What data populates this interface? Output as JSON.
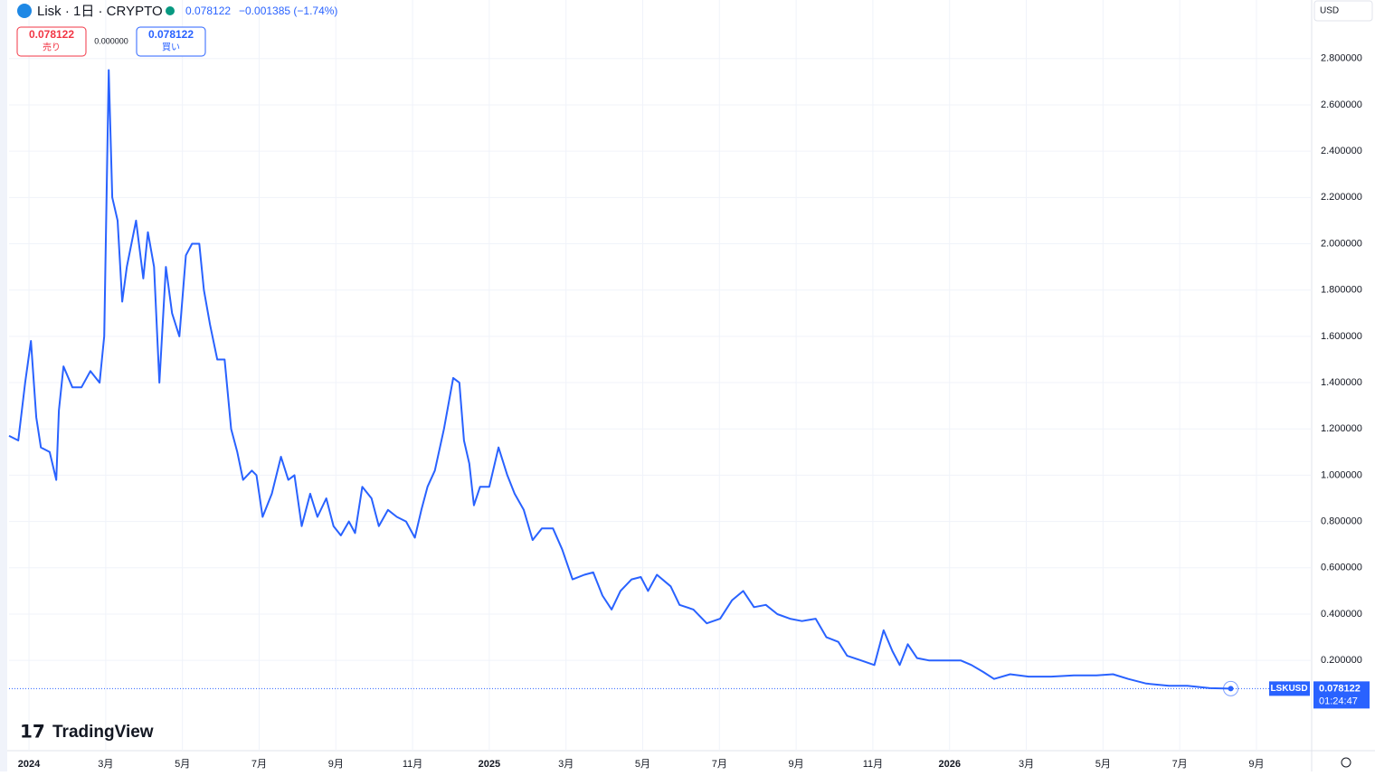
{
  "header": {
    "symbol": "Lisk · 1日 · CRYPTO",
    "price": "0.078122",
    "change": "−0.001385 (−1.74%)",
    "sell_price": "0.078122",
    "sell_label": "売り",
    "spread": "0.000000",
    "buy_price": "0.078122",
    "buy_label": "買い",
    "currency": "USD",
    "ticker": "LSKUSD",
    "last_label": "0.078122",
    "countdown": "01:24:47",
    "brand": "TradingView"
  },
  "chart_data": {
    "type": "line",
    "grid": true,
    "series": [
      {
        "name": "LSKUSD",
        "color": "#2962ff",
        "x": [
          -0.52,
          -0.28,
          -0.1,
          0.05,
          0.19,
          0.31,
          0.54,
          0.71,
          0.78,
          0.9,
          1.13,
          1.37,
          1.6,
          1.84,
          1.96,
          2.08,
          2.17,
          2.31,
          2.43,
          2.55,
          2.79,
          2.98,
          3.1,
          3.26,
          3.4,
          3.57,
          3.73,
          3.92,
          4.09,
          4.25,
          4.44,
          4.56,
          4.72,
          4.91,
          5.1,
          5.27,
          5.43,
          5.58,
          5.81,
          5.93,
          6.09,
          6.33,
          6.57,
          6.76,
          6.92,
          7.11,
          7.33,
          7.52,
          7.75,
          7.94,
          8.13,
          8.34,
          8.5,
          8.69,
          8.93,
          9.12,
          9.36,
          9.59,
          9.83,
          10.06,
          10.23,
          10.39,
          10.58,
          10.82,
          11.06,
          11.22,
          11.34,
          11.48,
          11.6,
          11.76,
          12.0,
          12.24,
          12.47,
          12.66,
          12.9,
          13.13,
          13.37,
          13.66,
          13.9,
          14.17,
          14.48,
          14.71,
          14.95,
          15.19,
          15.42,
          15.71,
          15.95,
          16.14,
          16.37,
          16.73,
          16.96,
          17.32,
          17.67,
          18.02,
          18.33,
          18.62,
          18.9,
          19.21,
          19.51,
          19.84,
          20.15,
          20.51,
          20.79,
          21.1,
          21.33,
          21.69,
          22.04,
          22.28,
          22.51,
          22.7,
          22.91,
          23.15,
          23.46,
          23.81,
          24.29,
          24.57,
          24.88,
          25.16,
          25.58,
          26.06,
          26.65,
          27.24,
          27.83,
          28.26,
          28.66,
          29.13,
          29.72,
          30.2,
          30.79,
          31.33
        ],
        "values": [
          1.17,
          1.15,
          1.4,
          1.58,
          1.25,
          1.12,
          1.1,
          0.98,
          1.28,
          1.47,
          1.38,
          1.38,
          1.45,
          1.4,
          1.6,
          2.75,
          2.2,
          2.1,
          1.75,
          1.9,
          2.1,
          1.85,
          2.05,
          1.9,
          1.4,
          1.9,
          1.7,
          1.6,
          1.95,
          2.0,
          2.0,
          1.8,
          1.65,
          1.5,
          1.5,
          1.2,
          1.1,
          0.98,
          1.02,
          1.0,
          0.82,
          0.92,
          1.08,
          0.98,
          1.0,
          0.78,
          0.92,
          0.82,
          0.9,
          0.78,
          0.74,
          0.8,
          0.75,
          0.95,
          0.9,
          0.78,
          0.85,
          0.82,
          0.8,
          0.73,
          0.85,
          0.95,
          1.02,
          1.2,
          1.42,
          1.4,
          1.15,
          1.05,
          0.87,
          0.95,
          0.95,
          1.12,
          1.0,
          0.92,
          0.85,
          0.72,
          0.77,
          0.77,
          0.68,
          0.55,
          0.57,
          0.58,
          0.48,
          0.42,
          0.5,
          0.55,
          0.56,
          0.5,
          0.57,
          0.52,
          0.44,
          0.42,
          0.36,
          0.38,
          0.46,
          0.5,
          0.43,
          0.44,
          0.4,
          0.38,
          0.37,
          0.38,
          0.3,
          0.28,
          0.22,
          0.2,
          0.18,
          0.33,
          0.24,
          0.18,
          0.27,
          0.21,
          0.2,
          0.2,
          0.2,
          0.18,
          0.15,
          0.12,
          0.14,
          0.13,
          0.13,
          0.135,
          0.135,
          0.14,
          0.12,
          0.1,
          0.09,
          0.09,
          0.08,
          0.078122
        ]
      }
    ],
    "xlim": [
      -0.52,
      33.44
    ],
    "ylim": [
      -0.19,
      3.053
    ],
    "xticks": [
      {
        "value": 0,
        "label": "2024"
      },
      {
        "value": 2,
        "label": "3月"
      },
      {
        "value": 4,
        "label": "5月"
      },
      {
        "value": 6,
        "label": "7月"
      },
      {
        "value": 8,
        "label": "9月"
      },
      {
        "value": 10,
        "label": "11月"
      },
      {
        "value": 12,
        "label": "2025"
      },
      {
        "value": 14,
        "label": "3月"
      },
      {
        "value": 16,
        "label": "5月"
      },
      {
        "value": 18,
        "label": "7月"
      },
      {
        "value": 20,
        "label": "9月"
      },
      {
        "value": 22,
        "label": "11月"
      },
      {
        "value": 24,
        "label": "2026"
      },
      {
        "value": 26,
        "label": "3月"
      },
      {
        "value": 28,
        "label": "5月"
      },
      {
        "value": 30,
        "label": "7月"
      },
      {
        "value": 32,
        "label": "9月"
      }
    ],
    "yticks": [
      {
        "value": 0.2,
        "label": "0.200000"
      },
      {
        "value": 0.4,
        "label": "0.400000"
      },
      {
        "value": 0.6,
        "label": "0.600000"
      },
      {
        "value": 0.8,
        "label": "0.800000"
      },
      {
        "value": 1.0,
        "label": "1.000000"
      },
      {
        "value": 1.2,
        "label": "1.200000"
      },
      {
        "value": 1.4,
        "label": "1.400000"
      },
      {
        "value": 1.6,
        "label": "1.600000"
      },
      {
        "value": 1.8,
        "label": "1.800000"
      },
      {
        "value": 2.0,
        "label": "2.000000"
      },
      {
        "value": 2.2,
        "label": "2.200000"
      },
      {
        "value": 2.4,
        "label": "2.400000"
      },
      {
        "value": 2.6,
        "label": "2.600000"
      },
      {
        "value": 2.8,
        "label": "2.800000"
      }
    ]
  }
}
